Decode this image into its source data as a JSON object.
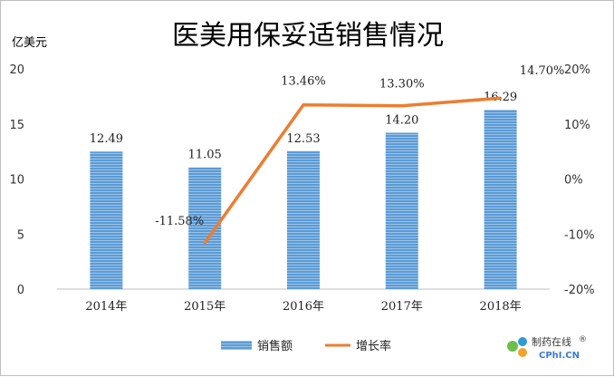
{
  "chart_data": {
    "type": "bar",
    "title": "医美用保妥适销售情况",
    "ylabel": "亿美元",
    "categories": [
      "2014年",
      "2015年",
      "2016年",
      "2017年",
      "2018年"
    ],
    "ylim": [
      0,
      20
    ],
    "yticks": [
      "0",
      "5",
      "10",
      "15",
      "20"
    ],
    "y2lim": [
      -20,
      20
    ],
    "y2ticks": [
      "-20%",
      "-10%",
      "0%",
      "10%",
      "20%"
    ],
    "series": [
      {
        "name": "销售额",
        "kind": "bar",
        "axis": "left",
        "color": "#5b9bd5",
        "values": [
          12.49,
          11.05,
          12.53,
          14.2,
          16.29
        ],
        "labels": [
          "12.49",
          "11.05",
          "12.53",
          "14.20",
          "16.29"
        ]
      },
      {
        "name": "增长率",
        "kind": "line",
        "axis": "right",
        "color": "#ed7d31",
        "values": [
          null,
          -11.58,
          13.46,
          13.3,
          14.7
        ],
        "labels": [
          "",
          "-11.58%",
          "13.46%",
          "13.30%",
          "14.70%"
        ]
      }
    ],
    "legend": "bottom",
    "grid": false
  },
  "watermark": {
    "brand": "制药在线",
    "sub": "CPhI.CN",
    "mark": "®"
  }
}
